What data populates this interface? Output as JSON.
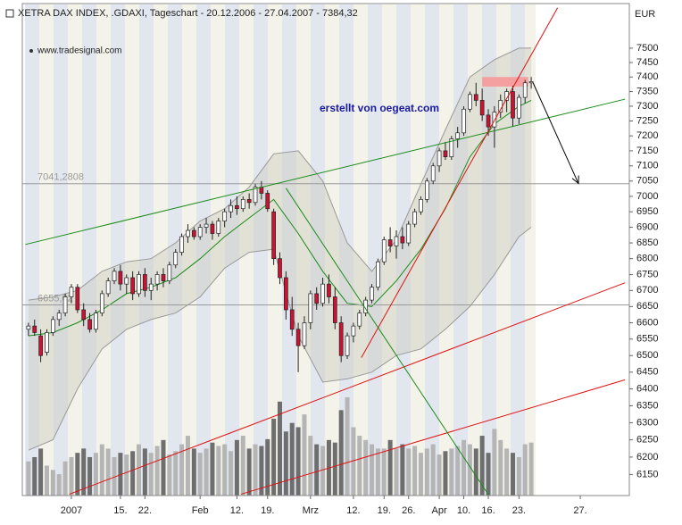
{
  "chart_data": {
    "type": "candlestick",
    "title": "XETRA DAX INDEX, .GDAXI, Tageschart - 20.12.2006 - 27.04.2007 - 7384,32",
    "y_unit": "EUR",
    "annotations": [
      "www.tradesignal.com",
      "erstellt von oegeat.com"
    ],
    "log_scale": true,
    "xlim": [
      -1,
      98
    ],
    "ylim": [
      6090,
      7670
    ],
    "yticks": [
      6150,
      6200,
      6250,
      6300,
      6350,
      6400,
      6450,
      6500,
      6550,
      6600,
      6650,
      6700,
      6750,
      6800,
      6850,
      6900,
      6950,
      7000,
      7050,
      7100,
      7150,
      7200,
      7250,
      7300,
      7350,
      7400,
      7450,
      7500
    ],
    "xticks": [
      {
        "value": 7,
        "label": "2007"
      },
      {
        "value": 15,
        "label": "15."
      },
      {
        "value": 19,
        "label": "22."
      },
      {
        "value": 28,
        "label": "Feb"
      },
      {
        "value": 34,
        "label": "12."
      },
      {
        "value": 39,
        "label": "19."
      },
      {
        "value": 46,
        "label": "Mrz"
      },
      {
        "value": 53,
        "label": "12."
      },
      {
        "value": 58,
        "label": "19."
      },
      {
        "value": 62,
        "label": "26."
      },
      {
        "value": 67,
        "label": "Apr"
      },
      {
        "value": 71,
        "label": "10."
      },
      {
        "value": 75,
        "label": "16."
      },
      {
        "value": 80,
        "label": "23."
      },
      {
        "value": 90,
        "label": "27."
      }
    ],
    "x": [
      0,
      1,
      2,
      3,
      4,
      5,
      6,
      7,
      8,
      9,
      10,
      11,
      12,
      13,
      14,
      15,
      16,
      17,
      18,
      19,
      20,
      21,
      22,
      23,
      24,
      25,
      26,
      27,
      28,
      29,
      30,
      31,
      32,
      33,
      34,
      35,
      36,
      37,
      38,
      39,
      40,
      41,
      42,
      43,
      44,
      45,
      46,
      47,
      48,
      49,
      50,
      51,
      52,
      53,
      54,
      55,
      56,
      57,
      58,
      59,
      60,
      61,
      62,
      63,
      64,
      65,
      66,
      67,
      68,
      69,
      70,
      71,
      72,
      73,
      74,
      75,
      76,
      77,
      78,
      79,
      80,
      81,
      82
    ],
    "open": [
      6580,
      6590,
      6560,
      6510,
      6570,
      6610,
      6630,
      6680,
      6710,
      6640,
      6610,
      6580,
      6630,
      6690,
      6730,
      6760,
      6720,
      6740,
      6690,
      6750,
      6700,
      6720,
      6750,
      6730,
      6780,
      6820,
      6870,
      6890,
      6870,
      6900,
      6910,
      6880,
      6920,
      6950,
      6970,
      6960,
      6990,
      6980,
      7030,
      7010,
      6950,
      6800,
      6740,
      6640,
      6580,
      6530,
      6600,
      6690,
      6660,
      6720,
      6680,
      6600,
      6500,
      6560,
      6590,
      6630,
      6670,
      6710,
      6790,
      6860,
      6840,
      6870,
      6850,
      6910,
      6950,
      6990,
      7050,
      7100,
      7150,
      7130,
      7190,
      7210,
      7290,
      7340,
      7320,
      7270,
      7230,
      7280,
      7320,
      7350,
      7260,
      7330,
      7380
    ],
    "high": [
      6600,
      6610,
      6580,
      6580,
      6620,
      6640,
      6690,
      6720,
      6720,
      6660,
      6630,
      6640,
      6700,
      6740,
      6770,
      6780,
      6750,
      6760,
      6760,
      6770,
      6740,
      6760,
      6770,
      6790,
      6830,
      6880,
      6910,
      6900,
      6910,
      6930,
      6920,
      6930,
      6960,
      6990,
      7000,
      7000,
      7010,
      7040,
      7050,
      7020,
      6960,
      6820,
      6760,
      6680,
      6600,
      6620,
      6700,
      6710,
      6740,
      6750,
      6710,
      6620,
      6570,
      6600,
      6640,
      6680,
      6720,
      6800,
      6870,
      6900,
      6890,
      6900,
      6920,
      6960,
      7000,
      7060,
      7110,
      7160,
      7180,
      7200,
      7230,
      7300,
      7350,
      7380,
      7360,
      7290,
      7300,
      7340,
      7360,
      7370,
      7340,
      7390,
      7400
    ],
    "low": [
      6560,
      6560,
      6480,
      6500,
      6560,
      6590,
      6620,
      6660,
      6630,
      6590,
      6570,
      6570,
      6620,
      6680,
      6720,
      6700,
      6690,
      6670,
      6680,
      6680,
      6670,
      6700,
      6710,
      6720,
      6770,
      6810,
      6850,
      6860,
      6860,
      6880,
      6860,
      6870,
      6900,
      6930,
      6940,
      6950,
      6960,
      6970,
      6990,
      6950,
      6780,
      6720,
      6610,
      6560,
      6450,
      6520,
      6580,
      6640,
      6650,
      6660,
      6580,
      6480,
      6490,
      6540,
      6580,
      6620,
      6660,
      6700,
      6780,
      6820,
      6800,
      6830,
      6840,
      6900,
      6940,
      6980,
      7040,
      7080,
      7120,
      7120,
      7160,
      7200,
      7280,
      7300,
      7250,
      7200,
      7160,
      7260,
      7280,
      7230,
      7240,
      7310,
      7360
    ],
    "close": [
      6590,
      6570,
      6500,
      6570,
      6610,
      6630,
      6680,
      6710,
      6640,
      6610,
      6580,
      6630,
      6690,
      6730,
      6760,
      6720,
      6740,
      6690,
      6750,
      6700,
      6720,
      6750,
      6730,
      6780,
      6820,
      6870,
      6890,
      6870,
      6900,
      6910,
      6880,
      6920,
      6950,
      6970,
      6960,
      6990,
      6980,
      7030,
      7010,
      6960,
      6800,
      6740,
      6640,
      6580,
      6530,
      6600,
      6690,
      6660,
      6720,
      6680,
      6600,
      6500,
      6560,
      6590,
      6630,
      6670,
      6710,
      6790,
      6860,
      6840,
      6870,
      6850,
      6910,
      6950,
      6990,
      7050,
      7100,
      7150,
      7130,
      7190,
      7210,
      7290,
      7340,
      7320,
      7270,
      7230,
      7280,
      7320,
      7350,
      7260,
      7330,
      7380,
      7384
    ],
    "up_color": "#ffffff",
    "down_color": "#cc1133",
    "volume": [
      40,
      45,
      55,
      35,
      30,
      25,
      40,
      45,
      50,
      55,
      45,
      50,
      60,
      55,
      45,
      50,
      48,
      52,
      60,
      55,
      50,
      58,
      65,
      48,
      52,
      60,
      70,
      55,
      50,
      55,
      62,
      58,
      60,
      52,
      65,
      70,
      55,
      60,
      58,
      66,
      90,
      110,
      75,
      85,
      80,
      95,
      70,
      60,
      58,
      65,
      62,
      100,
      115,
      80,
      70,
      65,
      60,
      55,
      55,
      65,
      55,
      60,
      55,
      58,
      50,
      55,
      60,
      48,
      52,
      55,
      58,
      65,
      60,
      55,
      70,
      50,
      78,
      65,
      55,
      50,
      45,
      60,
      62
    ],
    "bands": {
      "x": [
        0,
        4,
        8,
        12,
        16,
        20,
        24,
        28,
        32,
        36,
        40,
        44,
        48,
        52,
        56,
        60,
        64,
        68,
        72,
        76,
        80,
        82
      ],
      "upper": [
        6670,
        6680,
        6700,
        6760,
        6790,
        6800,
        6850,
        6920,
        6960,
        7030,
        7140,
        7150,
        7050,
        6850,
        6760,
        6860,
        7040,
        7220,
        7400,
        7460,
        7500,
        7500
      ],
      "middle": [
        6560,
        6570,
        6600,
        6640,
        6690,
        6710,
        6740,
        6800,
        6870,
        6930,
        6990,
        6880,
        6760,
        6660,
        6650,
        6730,
        6830,
        6960,
        7130,
        7240,
        7300,
        7320
      ],
      "lower": [
        6220,
        6250,
        6400,
        6520,
        6580,
        6610,
        6630,
        6680,
        6770,
        6820,
        6830,
        6560,
        6420,
        6430,
        6450,
        6500,
        6520,
        6580,
        6650,
        6750,
        6870,
        6900
      ]
    },
    "levels": [
      {
        "value": 7041.2808,
        "label": "7041,2808"
      },
      {
        "value": 6655.02,
        "label": "6655,02"
      }
    ],
    "lines": [
      {
        "color": "#1a8a1a",
        "x": [
          -0.5,
          97.3
        ],
        "y": [
          6845,
          7324
        ]
      },
      {
        "color": "#e01010",
        "x": [
          6.7,
          97.3
        ],
        "y": [
          6094,
          6724
        ]
      },
      {
        "color": "#e01010",
        "x": [
          34.7,
          97.3
        ],
        "y": [
          6094,
          6427
        ]
      },
      {
        "color": "#e01010",
        "x": [
          54.3,
          86.3
        ],
        "y": [
          6494,
          7642
        ]
      },
      {
        "color": "#1a8a1a",
        "x": [
          42,
          75.1
        ],
        "y": [
          7027,
          6090
        ]
      },
      {
        "color": "#000000",
        "x": [
          82.3,
          89.7
        ],
        "y": [
          7380,
          7042
        ]
      }
    ],
    "zone": {
      "x": [
        74,
        81.5
      ],
      "y": [
        7367,
        7400
      ],
      "color": "#f4a0a0"
    }
  }
}
